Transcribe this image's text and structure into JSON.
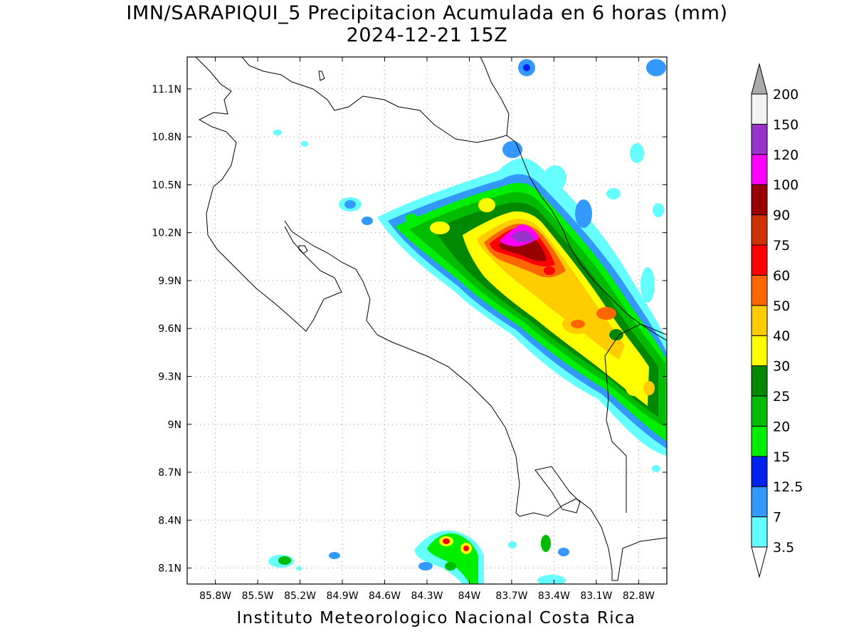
{
  "title": {
    "line1": "IMN/SARAPIQUI_5 Precipitacion Acumulada en 6 horas (mm)",
    "line2": "2024-12-21 15Z"
  },
  "credit": "Instituto Meteorologico Nacional Costa Rica",
  "map": {
    "lon_range": [
      -86.0,
      -82.6
    ],
    "lat_range": [
      8.0,
      11.3
    ],
    "lon_ticks": [
      "85.8W",
      "85.5W",
      "85.2W",
      "84.9W",
      "84.6W",
      "84.3W",
      "84W",
      "83.7W",
      "83.4W",
      "83.1W",
      "82.8W"
    ],
    "lat_ticks": [
      "8.1N",
      "8.4N",
      "8.7N",
      "9N",
      "9.3N",
      "9.6N",
      "9.9N",
      "10.2N",
      "10.5N",
      "10.8N",
      "11.1N"
    ],
    "grid": true
  },
  "legend": {
    "labels": [
      "3.5",
      "7",
      "12.5",
      "15",
      "20",
      "25",
      "30",
      "40",
      "50",
      "60",
      "75",
      "90",
      "100",
      "120",
      "150",
      "200"
    ],
    "colors": [
      "#66ffff",
      "#3399ff",
      "#0022ee",
      "#00ee00",
      "#00bb00",
      "#008800",
      "#ffff00",
      "#ffcc00",
      "#ff6600",
      "#ff0000",
      "#cc3300",
      "#990000",
      "#ff00ff",
      "#9933cc",
      "#f2f2f2",
      "#aaaaaa"
    ]
  }
}
